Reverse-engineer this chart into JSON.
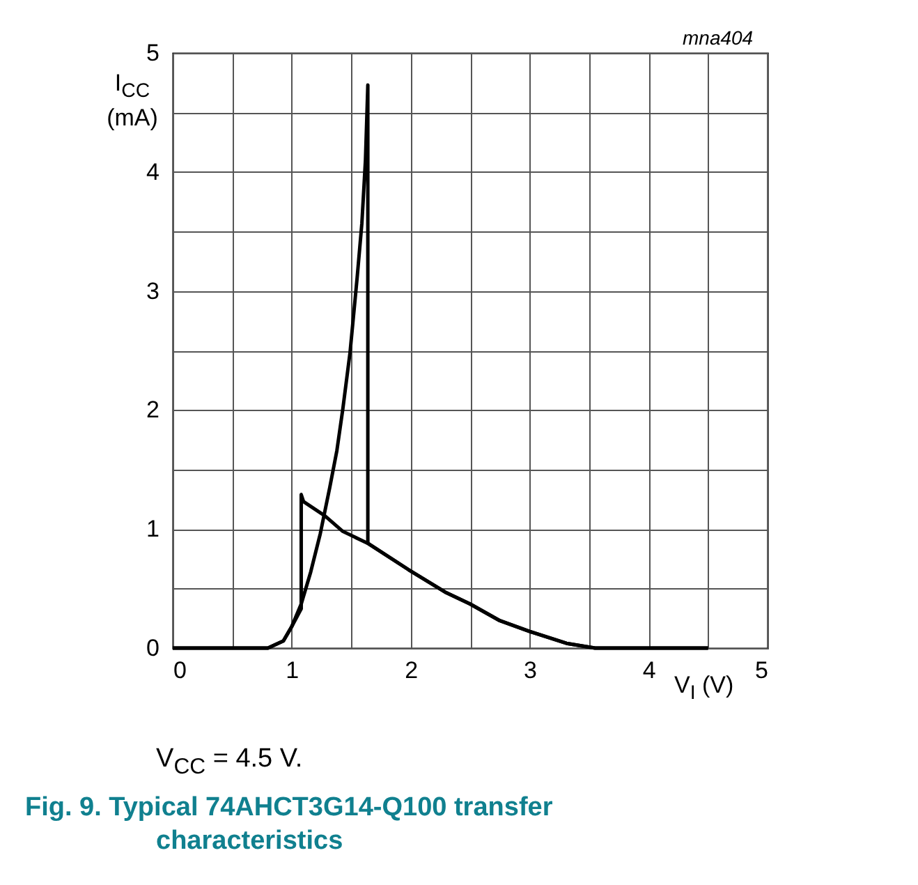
{
  "chart_data": {
    "type": "line",
    "title": "Fig. 9. Typical 74AHCT3G14-Q100 transfer characteristics",
    "xlabel": "V$_{I}$ (V)",
    "ylabel": "I$_{CC}$ (mA)",
    "annotations": [
      "mna404",
      "V$_{CC}$ = 4.5 V."
    ],
    "xlim": [
      0,
      5
    ],
    "ylim": [
      0,
      5
    ],
    "xticks": [
      0,
      {
        "value": 0.5,
        "label": null
      },
      1,
      {
        "value": 1.5,
        "label": null
      },
      2,
      {
        "value": 2.5,
        "label": null
      },
      3,
      {
        "value": 3.5,
        "label": null
      },
      4,
      {
        "value": 4.5,
        "label": null
      },
      5
    ],
    "yticks": [
      0,
      {
        "value": 0.5,
        "label": null
      },
      1,
      {
        "value": 1.5,
        "label": null
      },
      2,
      {
        "value": 2.5,
        "label": null
      },
      3,
      {
        "value": 3.5,
        "label": null
      },
      4,
      {
        "value": 4.5,
        "label": null
      },
      5
    ],
    "grid": true,
    "line_style": "solid",
    "series": [
      {
        "color": "#000000",
        "x": [
          0,
          0.8,
          0.93,
          1.0,
          1.08,
          1.16,
          1.24,
          1.32,
          1.38,
          1.43,
          1.49,
          1.55,
          1.59,
          1.62,
          1.64,
          1.64,
          1.98,
          2.29,
          2.5,
          2.75,
          3.0,
          3.31,
          3.55,
          4.5
        ],
        "values": [
          0,
          0,
          0.06,
          0.18,
          0.37,
          0.64,
          0.96,
          1.35,
          1.66,
          2.01,
          2.48,
          3.11,
          3.57,
          4.1,
          4.73,
          0.88,
          0.66,
          0.47,
          0.37,
          0.23,
          0.14,
          0.04,
          0,
          0
        ]
      },
      {
        "color": "#000000",
        "x": [
          4.5,
          3.55,
          3.31,
          3.0,
          2.75,
          2.5,
          2.29,
          1.98,
          1.64,
          1.43,
          1.28,
          1.1,
          1.08,
          1.08,
          1.0,
          0.93,
          0.8,
          0
        ],
        "values": [
          0,
          0,
          0.04,
          0.14,
          0.23,
          0.37,
          0.47,
          0.66,
          0.88,
          0.98,
          1.11,
          1.23,
          1.29,
          0.33,
          0.18,
          0.06,
          0,
          0
        ]
      }
    ]
  }
}
